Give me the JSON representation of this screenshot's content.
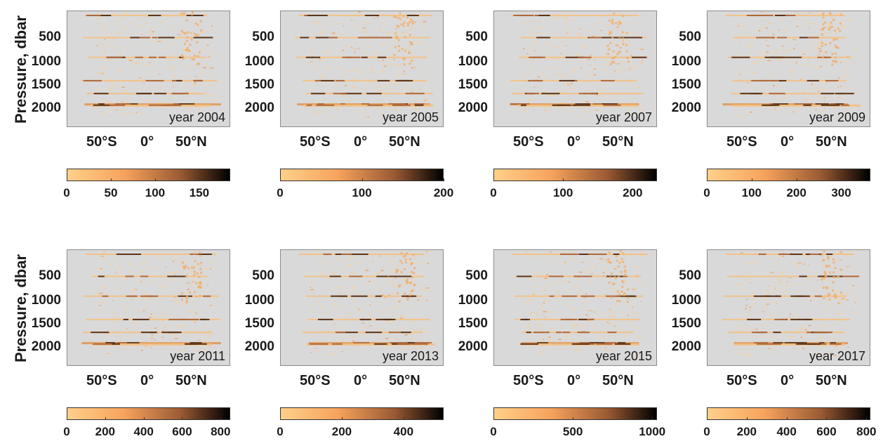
{
  "y_axis_label": "Pressure, dbar",
  "chart_data": [
    {
      "type": "heatmap",
      "label": "year 2004",
      "xticks": [
        "50°S",
        "0°",
        "50°N"
      ],
      "yticks": [
        "500",
        "1000",
        "1500",
        "2000"
      ],
      "colorbar": {
        "min": 0,
        "max": 185,
        "ticks": [
          "0",
          "50",
          "100",
          "150"
        ],
        "tick_values": [
          0,
          50,
          100,
          150
        ]
      }
    },
    {
      "type": "heatmap",
      "label": "year 2005",
      "xticks": [
        "50°S",
        "0°",
        "50°N"
      ],
      "yticks": [
        "500",
        "1000",
        "1500",
        "2000"
      ],
      "colorbar": {
        "min": 0,
        "max": 200,
        "ticks": [
          "0",
          "100",
          "200"
        ],
        "tick_values": [
          0,
          100,
          200
        ]
      }
    },
    {
      "type": "heatmap",
      "label": "year 2007",
      "xticks": [
        "50°S",
        "0°",
        "50°N"
      ],
      "yticks": [
        "500",
        "1000",
        "1500",
        "2000"
      ],
      "colorbar": {
        "min": 0,
        "max": 235,
        "ticks": [
          "0",
          "100",
          "200"
        ],
        "tick_values": [
          0,
          100,
          200
        ]
      }
    },
    {
      "type": "heatmap",
      "label": "year 2009",
      "xticks": [
        "50°S",
        "0°",
        "50°N"
      ],
      "yticks": [
        "500",
        "1000",
        "1500",
        "2000"
      ],
      "colorbar": {
        "min": 0,
        "max": 365,
        "ticks": [
          "0",
          "100",
          "200",
          "300"
        ],
        "tick_values": [
          0,
          100,
          200,
          300
        ]
      }
    },
    {
      "type": "heatmap",
      "label": "year 2011",
      "xticks": [
        "50°S",
        "0°",
        "50°N"
      ],
      "yticks": [
        "500",
        "1000",
        "1500",
        "2000"
      ],
      "colorbar": {
        "min": 0,
        "max": 850,
        "ticks": [
          "0",
          "200",
          "400",
          "600",
          "800"
        ],
        "tick_values": [
          0,
          200,
          400,
          600,
          800
        ]
      }
    },
    {
      "type": "heatmap",
      "label": "year 2013",
      "xticks": [
        "50°S",
        "0°",
        "50°N"
      ],
      "yticks": [
        "500",
        "1000",
        "1500",
        "2000"
      ],
      "colorbar": {
        "min": 0,
        "max": 530,
        "ticks": [
          "0",
          "200",
          "400"
        ],
        "tick_values": [
          0,
          200,
          400
        ]
      }
    },
    {
      "type": "heatmap",
      "label": "year 2015",
      "xticks": [
        "50°S",
        "0°",
        "50°N"
      ],
      "yticks": [
        "500",
        "1000",
        "1500",
        "2000"
      ],
      "colorbar": {
        "min": 0,
        "max": 1030,
        "ticks": [
          "0",
          "500",
          "1000"
        ],
        "tick_values": [
          0,
          500,
          1000
        ]
      }
    },
    {
      "type": "heatmap",
      "label": "year 2017",
      "xticks": [
        "50°S",
        "0°",
        "50°N"
      ],
      "yticks": [
        "500",
        "1000",
        "1500",
        "2000"
      ],
      "colorbar": {
        "min": 0,
        "max": 820,
        "ticks": [
          "0",
          "200",
          "400",
          "600",
          "800"
        ],
        "tick_values": [
          0,
          200,
          400,
          600,
          800
        ]
      }
    }
  ],
  "colors": {
    "background": "#d9d9d9",
    "low": "#ffd08a",
    "mid": "#f7a35c",
    "high": "#000000"
  }
}
